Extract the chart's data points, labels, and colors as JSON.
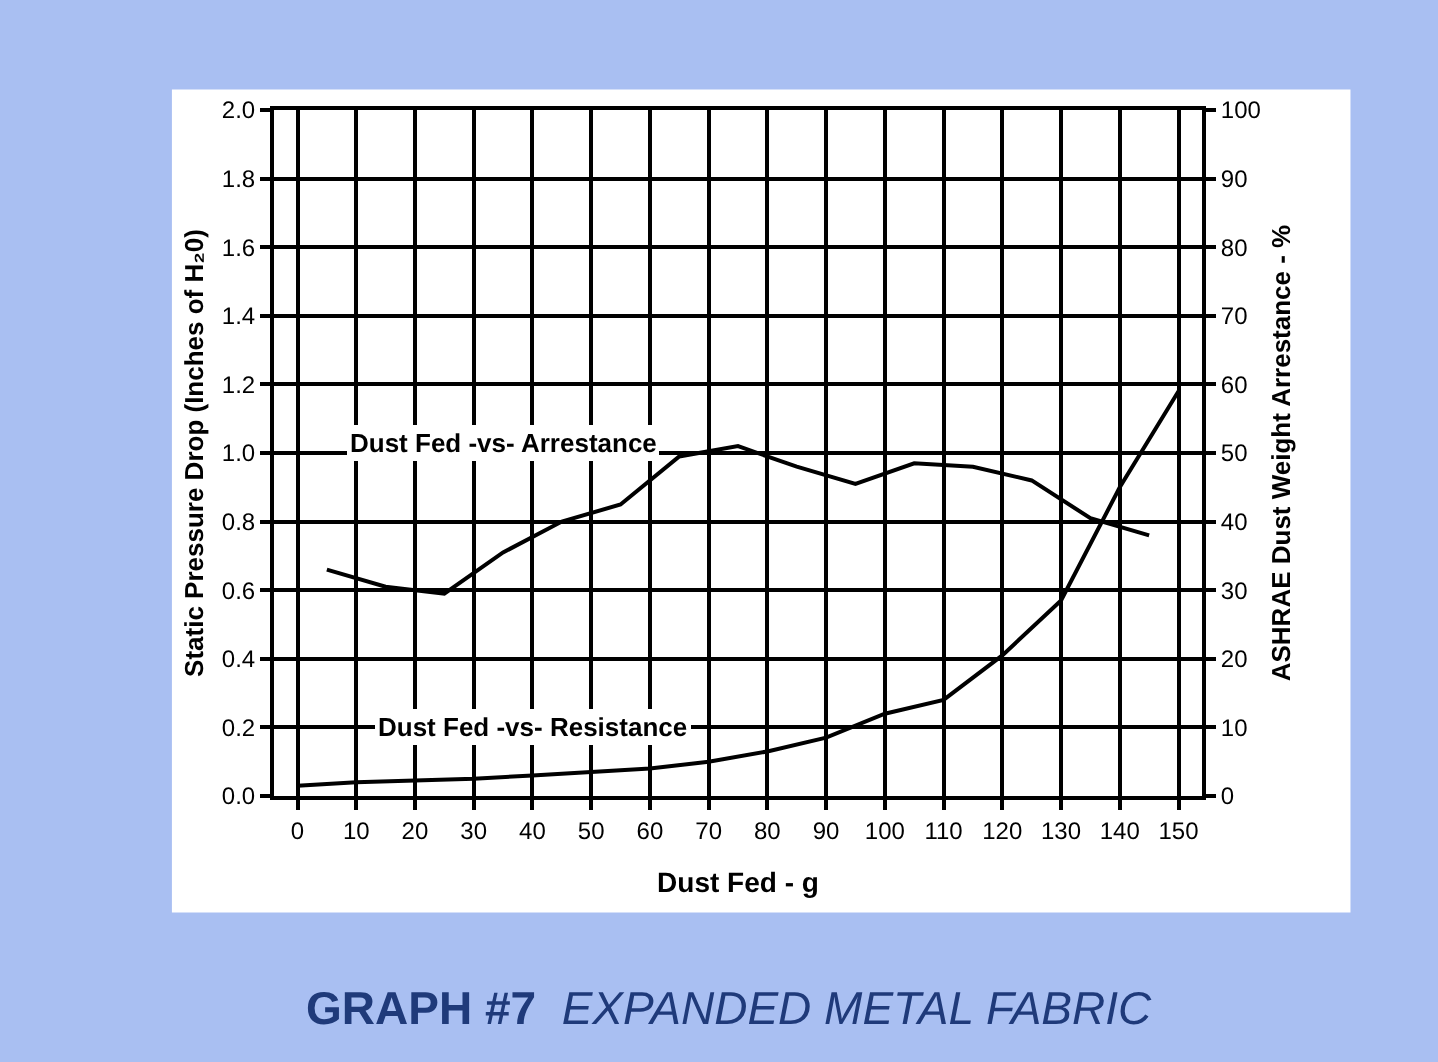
{
  "chart_data": {
    "type": "line",
    "title": "GRAPH #7",
    "subtitle": "EXPANDED METAL FABRIC",
    "xlabel": "Dust Fed - g",
    "ylabel": "Static Pressure Drop (Inches of H₂0)",
    "y2label": "ASHRAE Dust Weight Arrestance - %",
    "series": [
      {
        "name": "Dust Fed -vs- Resistance",
        "color": "#000000",
        "x": [
          0,
          10,
          20,
          30,
          40,
          50,
          60,
          70,
          80,
          90,
          100,
          110,
          120,
          130,
          140,
          150
        ],
        "values": [
          0.03,
          0.04,
          0.045,
          0.05,
          0.06,
          0.07,
          0.08,
          0.1,
          0.13,
          0.17,
          0.24,
          0.28,
          0.41,
          0.57,
          0.9,
          1.18
        ]
      },
      {
        "name": "Dust Fed -vs- Arrestance",
        "color": "#000000",
        "axis": "y2",
        "x": [
          5,
          15,
          25,
          35,
          45,
          55,
          65,
          75,
          85,
          95,
          105,
          115,
          125,
          135,
          145
        ],
        "values": [
          33,
          30.5,
          29.5,
          35.5,
          40,
          42.5,
          49.5,
          51,
          48,
          45.5,
          48.5,
          48,
          46,
          40.5,
          38
        ]
      }
    ],
    "xlim": [
      -4,
      154
    ],
    "xticks": [
      0,
      10,
      20,
      30,
      40,
      50,
      60,
      70,
      80,
      90,
      100,
      110,
      120,
      130,
      140,
      150
    ],
    "ylim": [
      0,
      2
    ],
    "yticks": [
      {
        "value": 0,
        "label": "0.0"
      },
      0.2,
      0.4,
      0.6,
      0.8,
      {
        "value": 1,
        "label": "1.0"
      },
      1.2,
      1.4,
      1.6,
      1.8,
      {
        "value": 2,
        "label": "2.0"
      }
    ],
    "y2lim": [
      0,
      100
    ],
    "y2ticks": [
      0,
      10,
      20,
      30,
      40,
      50,
      60,
      70,
      80,
      90,
      100
    ],
    "grid": true,
    "legend": false,
    "marker": "none",
    "line_style": "solid"
  }
}
